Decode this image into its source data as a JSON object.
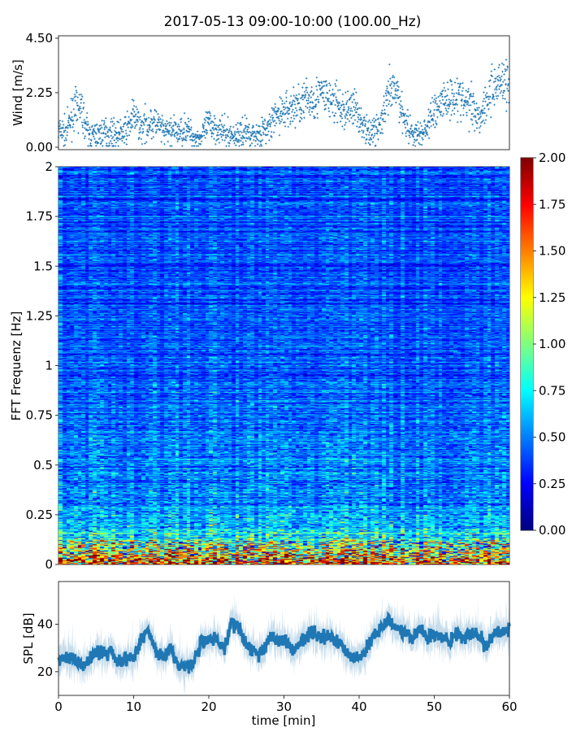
{
  "chart_data": [
    {
      "type": "scatter",
      "name": "wind",
      "title": "2017-05-13 09:00-10:00 (100.00_Hz)",
      "ylabel": "Wind [m/s]",
      "xlim": [
        0,
        60
      ],
      "ylim": [
        -0.1,
        4.6
      ],
      "yticks": [
        "0.00",
        "2.25",
        "4.50"
      ],
      "ytick_values": [
        0,
        2.25,
        4.5
      ],
      "color": "#1f77b4",
      "x_minutes": [
        0,
        1,
        2,
        3,
        4,
        5,
        6,
        7,
        8,
        9,
        10,
        11,
        12,
        13,
        14,
        15,
        16,
        17,
        18,
        19,
        20,
        21,
        22,
        23,
        24,
        25,
        26,
        27,
        28,
        29,
        30,
        31,
        32,
        33,
        34,
        35,
        36,
        37,
        38,
        39,
        40,
        41,
        42,
        43,
        44,
        45,
        46,
        47,
        48,
        49,
        50,
        51,
        52,
        53,
        54,
        55,
        56,
        57,
        58,
        59,
        60
      ],
      "mean_values": [
        0.7,
        0.6,
        1.5,
        1.6,
        0.5,
        0.5,
        0.6,
        0.6,
        0.5,
        0.7,
        1.3,
        0.8,
        1.0,
        1.0,
        0.6,
        0.7,
        0.6,
        0.8,
        0.4,
        0.4,
        1.0,
        0.8,
        0.6,
        0.5,
        0.5,
        0.7,
        0.5,
        0.6,
        0.8,
        1.3,
        1.5,
        1.6,
        1.8,
        1.9,
        2.0,
        2.2,
        2.0,
        1.8,
        1.4,
        1.8,
        1.3,
        0.6,
        0.7,
        1.0,
        2.2,
        2.3,
        1.2,
        0.6,
        0.5,
        0.8,
        1.5,
        1.9,
        2.0,
        2.2,
        1.8,
        1.8,
        1.2,
        2.0,
        2.5,
        2.8,
        2.6
      ]
    },
    {
      "type": "heatmap",
      "name": "spectrogram",
      "ylabel": "FFT Frequenz [Hz]",
      "xlim": [
        0,
        60
      ],
      "ylim": [
        0,
        2
      ],
      "yticks": [
        "0",
        "0.25",
        "0.5",
        "0.75",
        "1",
        "1.25",
        "1.5",
        "1.75",
        "2"
      ],
      "ytick_values": [
        0,
        0.25,
        0.5,
        0.75,
        1,
        1.25,
        1.5,
        1.75,
        2
      ],
      "colormap": "jet",
      "clim": [
        0,
        2
      ],
      "colorbar_ticks": [
        "0.00",
        "0.25",
        "0.50",
        "0.75",
        "1.00",
        "1.25",
        "1.50",
        "1.75",
        "2.00"
      ],
      "profile_freq": [
        0,
        0.05,
        0.1,
        0.15,
        0.2,
        0.3,
        0.5,
        0.75,
        1,
        1.5,
        2
      ],
      "profile_level": [
        1.6,
        1.1,
        0.8,
        0.6,
        0.5,
        0.42,
        0.38,
        0.33,
        0.3,
        0.28,
        0.3
      ]
    },
    {
      "type": "line",
      "name": "spl",
      "xlabel": "time [min]",
      "ylabel": "SPL [dB]",
      "xlim": [
        0,
        60
      ],
      "ylim": [
        10,
        58
      ],
      "yticks": [
        "20",
        "40"
      ],
      "ytick_values": [
        20,
        40
      ],
      "xticks": [
        "0",
        "10",
        "20",
        "30",
        "40",
        "50",
        "60"
      ],
      "xtick_values": [
        0,
        10,
        20,
        30,
        40,
        50,
        60
      ],
      "color": "#1f77b4",
      "x_minutes": [
        0,
        1,
        2,
        3,
        4,
        5,
        6,
        7,
        8,
        9,
        10,
        11,
        12,
        13,
        14,
        15,
        16,
        17,
        18,
        19,
        20,
        21,
        22,
        23,
        24,
        25,
        26,
        27,
        28,
        29,
        30,
        31,
        32,
        33,
        34,
        35,
        36,
        37,
        38,
        39,
        40,
        41,
        42,
        43,
        44,
        45,
        46,
        47,
        48,
        49,
        50,
        51,
        52,
        53,
        54,
        55,
        56,
        57,
        58,
        59,
        60
      ],
      "mean_values": [
        25,
        26,
        26,
        22,
        24,
        29,
        27,
        29,
        24,
        25,
        25,
        34,
        37,
        28,
        27,
        29,
        22,
        22,
        24,
        32,
        33,
        34,
        29,
        40,
        38,
        31,
        29,
        27,
        35,
        33,
        34,
        30,
        31,
        35,
        36,
        34,
        35,
        33,
        30,
        26,
        26,
        29,
        36,
        38,
        42,
        38,
        37,
        34,
        37,
        35,
        36,
        34,
        33,
        36,
        34,
        36,
        35,
        30,
        36,
        37,
        38
      ]
    }
  ]
}
